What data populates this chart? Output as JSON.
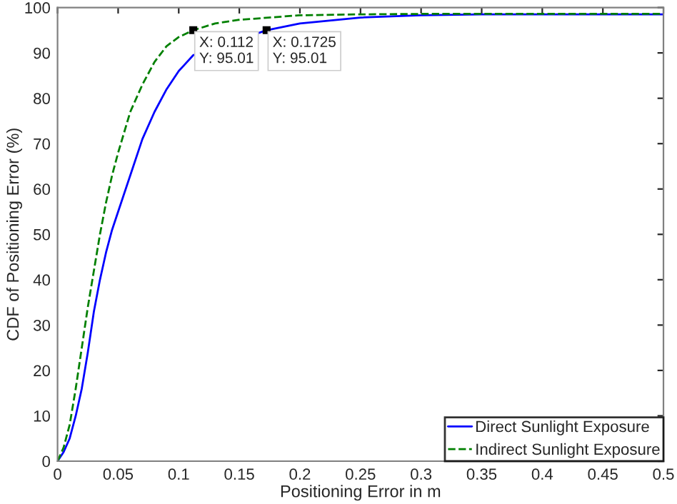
{
  "chart_data": {
    "type": "line",
    "xlabel": "Positioning Error in m",
    "ylabel": "CDF of Positioning Error (%)",
    "xlim": [
      0,
      0.5
    ],
    "xticks": [
      {
        "value": 0,
        "label": "0"
      },
      0.05,
      0.1,
      0.15,
      0.2,
      0.25,
      0.3,
      0.35,
      0.4,
      0.45,
      0.5
    ],
    "ylim": [
      0,
      100
    ],
    "yticks": [
      0,
      10,
      20,
      30,
      40,
      50,
      60,
      70,
      80,
      90,
      100
    ],
    "grid": false,
    "legend": "bottom right",
    "series": [
      {
        "name": "Direct Sunlight Exposure",
        "color": "#0000ff",
        "line_style": "solid",
        "x": [
          0,
          0.005,
          0.01,
          0.015,
          0.02,
          0.025,
          0.03,
          0.035,
          0.04,
          0.045,
          0.05,
          0.06,
          0.07,
          0.08,
          0.09,
          0.1,
          0.112,
          0.13,
          0.15,
          0.1725,
          0.2,
          0.25,
          0.3,
          0.35,
          0.4,
          0.45,
          0.5
        ],
        "values": [
          0,
          2,
          5,
          10,
          16,
          24,
          33,
          40,
          46,
          51,
          55,
          63,
          71,
          77,
          82,
          86,
          89.5,
          null,
          null,
          95,
          96.5,
          97.8,
          98.3,
          98.5,
          98.5,
          98.5,
          98.5
        ]
      },
      {
        "name": "Indirect Sunlight Exposure",
        "color": "#008000",
        "line_style": "dashed",
        "x": [
          0,
          0.005,
          0.01,
          0.015,
          0.02,
          0.025,
          0.03,
          0.035,
          0.04,
          0.045,
          0.05,
          0.06,
          0.07,
          0.08,
          0.09,
          0.1,
          0.112,
          0.13,
          0.15,
          0.2,
          0.25,
          0.3,
          0.35,
          0.4,
          0.45,
          0.5
        ],
        "values": [
          0,
          3,
          8,
          16,
          25,
          34,
          42,
          50,
          57,
          63,
          68,
          77,
          83,
          88,
          91.5,
          93.5,
          95,
          96.5,
          97.3,
          98.3,
          98.5,
          98.6,
          98.6,
          98.6,
          98.6,
          98.6
        ]
      }
    ],
    "annotations": [
      {
        "text": "X: 0.112\nY: 95.01",
        "x": 0.112,
        "y": 95.01
      },
      {
        "text": "X: 0.1725\nY: 95.01",
        "x": 0.1725,
        "y": 95.01
      }
    ]
  }
}
